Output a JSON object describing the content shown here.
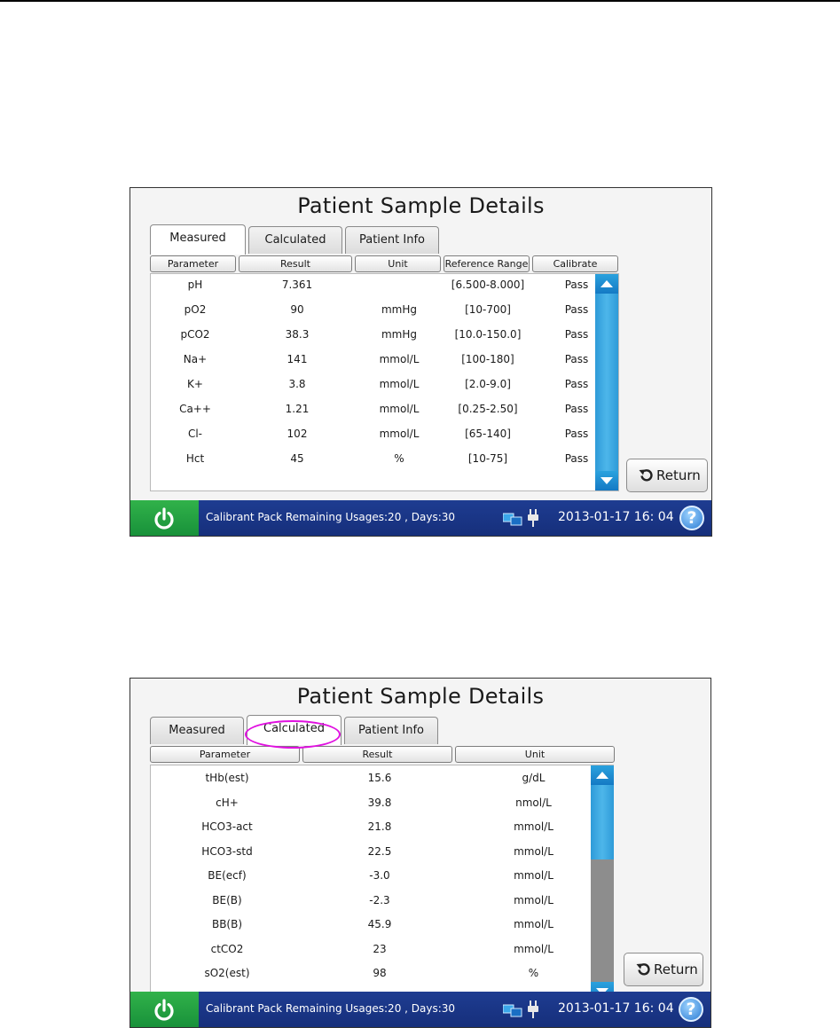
{
  "screen_title": "Patient Sample Details",
  "tabs": {
    "measured": "Measured",
    "calculated": "Calculated",
    "patient_info": "Patient Info"
  },
  "return_label": "Return",
  "status_bar": {
    "message": "Calibrant Pack Remaining Usages:20 , Days:30",
    "datetime": "2013-01-17  16: 04",
    "help": "?"
  },
  "measured": {
    "headers": {
      "parameter": "Parameter",
      "result": "Result",
      "unit": "Unit",
      "reference_range": "Reference Range",
      "calibrate": "Calibrate"
    },
    "rows": [
      {
        "parameter": "pH",
        "result": "7.361",
        "unit": "",
        "range": "[6.500-8.000]",
        "calibrate": "Pass"
      },
      {
        "parameter": "pO2",
        "result": "90",
        "unit": "mmHg",
        "range": "[10-700]",
        "calibrate": "Pass"
      },
      {
        "parameter": "pCO2",
        "result": "38.3",
        "unit": "mmHg",
        "range": "[10.0-150.0]",
        "calibrate": "Pass"
      },
      {
        "parameter": "Na+",
        "result": "141",
        "unit": "mmol/L",
        "range": "[100-180]",
        "calibrate": "Pass"
      },
      {
        "parameter": "K+",
        "result": "3.8",
        "unit": "mmol/L",
        "range": "[2.0-9.0]",
        "calibrate": "Pass"
      },
      {
        "parameter": "Ca++",
        "result": "1.21",
        "unit": "mmol/L",
        "range": "[0.25-2.50]",
        "calibrate": "Pass"
      },
      {
        "parameter": "Cl-",
        "result": "102",
        "unit": "mmol/L",
        "range": "[65-140]",
        "calibrate": "Pass"
      },
      {
        "parameter": "Hct",
        "result": "45",
        "unit": "%",
        "range": "[10-75]",
        "calibrate": "Pass"
      }
    ]
  },
  "calculated": {
    "headers": {
      "parameter": "Parameter",
      "result": "Result",
      "unit": "Unit"
    },
    "rows": [
      {
        "parameter": "tHb(est)",
        "result": "15.6",
        "unit": "g/dL"
      },
      {
        "parameter": "cH+",
        "result": "39.8",
        "unit": "nmol/L"
      },
      {
        "parameter": "HCO3-act",
        "result": "21.8",
        "unit": "mmol/L"
      },
      {
        "parameter": "HCO3-std",
        "result": "22.5",
        "unit": "mmol/L"
      },
      {
        "parameter": "BE(ecf)",
        "result": "-3.0",
        "unit": "mmol/L"
      },
      {
        "parameter": "BE(B)",
        "result": "-2.3",
        "unit": "mmol/L"
      },
      {
        "parameter": "BB(B)",
        "result": "45.9",
        "unit": "mmol/L"
      },
      {
        "parameter": "ctCO2",
        "result": "23",
        "unit": "mmol/L"
      },
      {
        "parameter": "sO2(est)",
        "result": "98",
        "unit": "%"
      }
    ]
  },
  "colors": {
    "status_bar": "#1e3c91",
    "power_button": "#31b24a",
    "scrollbar_accent": "#2ba2de",
    "annotation": "#e010e0"
  }
}
